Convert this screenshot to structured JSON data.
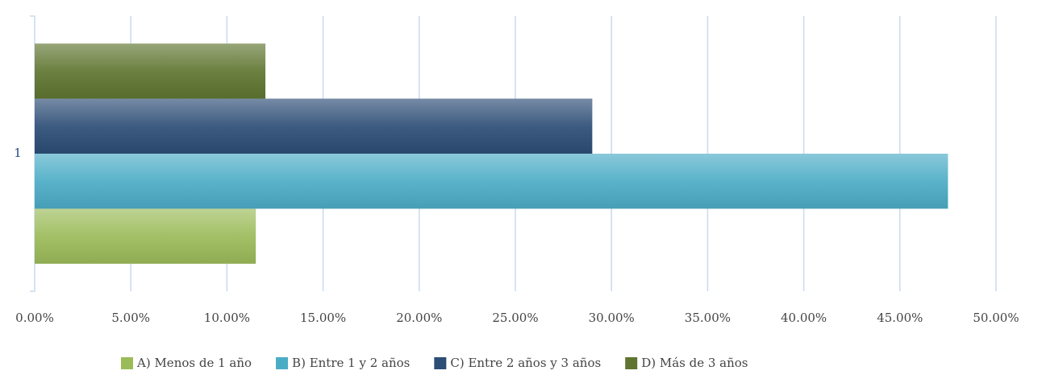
{
  "chart_data": {
    "type": "barh",
    "categories": [
      "1"
    ],
    "series": [
      {
        "name": "A) Menos de 1 año",
        "color": "#9bbb59",
        "values": [
          11.5
        ]
      },
      {
        "name": "B) Entre 1 y 2 años",
        "color": "#4bacc6",
        "values": [
          47.5
        ]
      },
      {
        "name": "C) Entre 2 años y 3 años",
        "color": "#2c4d75",
        "values": [
          29.0
        ]
      },
      {
        "name": "D) Más de 3 años",
        "color": "#5f7530",
        "values": [
          12.0
        ]
      }
    ],
    "xlim": [
      0,
      50
    ],
    "xticks": [
      {
        "value": 0,
        "label": "0.00%"
      },
      {
        "value": 5,
        "label": "5.00%"
      },
      {
        "value": 10,
        "label": "10.00%"
      },
      {
        "value": 15,
        "label": "15.00%"
      },
      {
        "value": 20,
        "label": "20.00%"
      },
      {
        "value": 25,
        "label": "25.00%"
      },
      {
        "value": 30,
        "label": "30.00%"
      },
      {
        "value": 35,
        "label": "35.00%"
      },
      {
        "value": 40,
        "label": "40.00%"
      },
      {
        "value": 45,
        "label": "45.00%"
      },
      {
        "value": 50,
        "label": "50.00%"
      }
    ],
    "grid": true,
    "legend": "bottom"
  }
}
